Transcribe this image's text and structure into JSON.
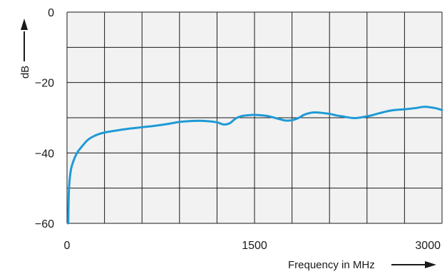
{
  "chart_data": {
    "type": "line",
    "xlabel": "Frequency in MHz",
    "ylabel": "dB",
    "xlim": [
      0,
      3000
    ],
    "ylim": [
      -60,
      0
    ],
    "x_ticks": [
      0,
      1500,
      3000
    ],
    "x_tick_labels": [
      "0",
      "1500",
      "3000"
    ],
    "y_ticks": [
      0,
      -20,
      -40,
      -60
    ],
    "y_tick_labels": [
      "0",
      "−20",
      "−40",
      "−60"
    ],
    "grid": true,
    "grid_x_step": 300,
    "grid_y_step": 10,
    "colors": {
      "line": "#1e9ad6",
      "plot_background": "#f2f2f2",
      "grid": "#1a1a1a"
    },
    "series": [
      {
        "x": [
          10,
          12,
          15,
          20,
          30,
          40,
          60,
          80,
          100,
          130,
          160,
          200,
          250,
          300,
          400,
          500,
          600,
          700,
          800,
          900,
          1000,
          1100,
          1200,
          1250,
          1300,
          1350,
          1400,
          1450,
          1500,
          1600,
          1700,
          1750,
          1800,
          1850,
          1900,
          1950,
          2000,
          2100,
          2150,
          2200,
          2300,
          2400,
          2450,
          2500,
          2600,
          2700,
          2800,
          2850,
          2900,
          2950,
          3000
        ],
        "y": [
          -60,
          -55,
          -51,
          -48,
          -45,
          -43.5,
          -41.5,
          -40,
          -39,
          -37.7,
          -36.5,
          -35.5,
          -34.7,
          -34.2,
          -33.6,
          -33.1,
          -32.7,
          -32.3,
          -31.8,
          -31.2,
          -30.9,
          -30.9,
          -31.3,
          -31.9,
          -31.6,
          -30.2,
          -29.5,
          -29.3,
          -29.2,
          -29.5,
          -30.4,
          -30.8,
          -30.7,
          -30.1,
          -29.1,
          -28.6,
          -28.5,
          -28.9,
          -29.3,
          -29.6,
          -30.1,
          -29.6,
          -29.2,
          -28.7,
          -27.9,
          -27.6,
          -27.2,
          -26.9,
          -27.0,
          -27.3,
          -27.8
        ]
      }
    ]
  }
}
